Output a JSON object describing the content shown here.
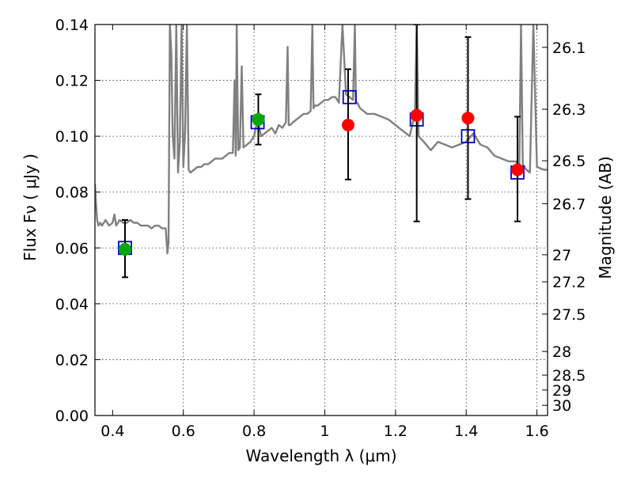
{
  "chart_data": {
    "type": "scatter",
    "xlabel": "Wavelength  λ (μm)",
    "ylabel": "Flux  Fν  ( μJy )",
    "y2label": "Magnitude (AB)",
    "xlim": [
      0.35,
      1.63
    ],
    "ylim": [
      0.0,
      0.14
    ],
    "grid": true,
    "x_ticks": [
      0.4,
      0.6,
      0.8,
      1.0,
      1.2,
      1.4,
      1.6
    ],
    "x_tick_labels": [
      "0.4",
      "0.6",
      "0.8",
      "1",
      "1.2",
      "1.4",
      "1.6"
    ],
    "y_ticks": [
      0.0,
      0.02,
      0.04,
      0.06,
      0.08,
      0.1,
      0.12,
      0.14
    ],
    "y_tick_labels": [
      "0.00",
      "0.02",
      "0.04",
      "0.06",
      "0.08",
      "0.10",
      "0.12",
      "0.14"
    ],
    "mag_ticks": [
      26.1,
      26.3,
      26.5,
      26.7,
      27,
      27.2,
      27.5,
      28,
      28.5,
      29,
      30
    ],
    "mag_tick_labels": [
      "26.1",
      "26.3",
      "26.5",
      "26.7",
      "27",
      "27.2",
      "27.5",
      "28",
      "28.5",
      "29",
      "30"
    ],
    "series": [
      {
        "kind": "model_sed",
        "color": "#808080",
        "x": [
          0.35,
          0.352,
          0.356,
          0.36,
          0.365,
          0.37,
          0.38,
          0.39,
          0.4,
          0.405,
          0.41,
          0.42,
          0.43,
          0.44,
          0.45,
          0.46,
          0.47,
          0.48,
          0.49,
          0.5,
          0.51,
          0.52,
          0.53,
          0.54,
          0.55,
          0.555,
          0.558,
          0.562,
          0.566,
          0.57,
          0.575,
          0.58,
          0.585,
          0.59,
          0.595,
          0.6,
          0.605,
          0.61,
          0.615,
          0.62,
          0.63,
          0.64,
          0.65,
          0.66,
          0.67,
          0.68,
          0.69,
          0.7,
          0.71,
          0.72,
          0.73,
          0.74,
          0.745,
          0.748,
          0.751,
          0.755,
          0.76,
          0.765,
          0.77,
          0.78,
          0.79,
          0.8,
          0.81,
          0.82,
          0.83,
          0.84,
          0.85,
          0.86,
          0.87,
          0.88,
          0.89,
          0.895,
          0.898,
          0.902,
          0.91,
          0.92,
          0.93,
          0.94,
          0.95,
          0.96,
          0.965,
          0.968,
          0.972,
          0.98,
          0.99,
          1.0,
          1.01,
          1.02,
          1.03,
          1.04,
          1.05,
          1.06,
          1.07,
          1.08,
          1.085,
          1.088,
          1.092,
          1.1,
          1.12,
          1.14,
          1.16,
          1.18,
          1.2,
          1.22,
          1.24,
          1.255,
          1.26,
          1.265,
          1.28,
          1.3,
          1.32,
          1.34,
          1.36,
          1.38,
          1.4,
          1.42,
          1.44,
          1.46,
          1.48,
          1.5,
          1.52,
          1.54,
          1.55,
          1.555,
          1.56,
          1.57,
          1.58,
          1.59,
          1.6,
          1.62,
          1.63
        ],
        "y": [
          0.083,
          0.078,
          0.07,
          0.068,
          0.069,
          0.068,
          0.07,
          0.068,
          0.069,
          0.072,
          0.068,
          0.07,
          0.069,
          0.069,
          0.07,
          0.069,
          0.069,
          0.068,
          0.068,
          0.068,
          0.067,
          0.068,
          0.068,
          0.067,
          0.067,
          0.058,
          0.062,
          0.14,
          0.13,
          0.1,
          0.092,
          0.14,
          0.087,
          0.098,
          0.14,
          0.089,
          0.102,
          0.14,
          0.088,
          0.087,
          0.088,
          0.089,
          0.089,
          0.09,
          0.09,
          0.091,
          0.092,
          0.092,
          0.092,
          0.093,
          0.094,
          0.094,
          0.12,
          0.093,
          0.14,
          0.095,
          0.096,
          0.125,
          0.096,
          0.097,
          0.098,
          0.1,
          0.106,
          0.1,
          0.101,
          0.102,
          0.103,
          0.101,
          0.104,
          0.103,
          0.105,
          0.132,
          0.104,
          0.104,
          0.105,
          0.106,
          0.107,
          0.108,
          0.108,
          0.109,
          0.14,
          0.11,
          0.111,
          0.111,
          0.112,
          0.113,
          0.113,
          0.114,
          0.114,
          0.112,
          0.14,
          0.115,
          0.114,
          0.113,
          0.14,
          0.112,
          0.112,
          0.11,
          0.108,
          0.108,
          0.107,
          0.106,
          0.104,
          0.102,
          0.1,
          0.108,
          0.14,
          0.1,
          0.098,
          0.095,
          0.098,
          0.097,
          0.096,
          0.097,
          0.098,
          0.101,
          0.097,
          0.096,
          0.093,
          0.092,
          0.091,
          0.091,
          0.089,
          0.14,
          0.09,
          0.088,
          0.087,
          0.14,
          0.089,
          0.088,
          0.088
        ]
      },
      {
        "kind": "model_photometry",
        "marker": "open-square",
        "color": "#0000cc",
        "x": [
          0.435,
          0.81,
          1.07,
          1.26,
          1.405,
          1.545
        ],
        "y": [
          0.06,
          0.105,
          0.114,
          0.106,
          0.1,
          0.087
        ]
      },
      {
        "kind": "detections",
        "marker": "filled-circle",
        "color": "#00aa00",
        "x": [
          0.435,
          0.812
        ],
        "y": [
          0.0595,
          0.106
        ],
        "yerr_low": [
          0.0495,
          0.097
        ],
        "yerr_high": [
          0.07,
          0.115
        ]
      },
      {
        "kind": "measurements",
        "marker": "filled-circle",
        "color": "#ff0000",
        "x": [
          1.066,
          1.26,
          1.405,
          1.545
        ],
        "y": [
          0.104,
          0.1075,
          0.1065,
          0.088
        ],
        "yerr_low": [
          0.0845,
          0.0695,
          0.0775,
          0.0695
        ],
        "yerr_high": [
          0.124,
          0.14,
          0.1355,
          0.107
        ]
      }
    ]
  }
}
